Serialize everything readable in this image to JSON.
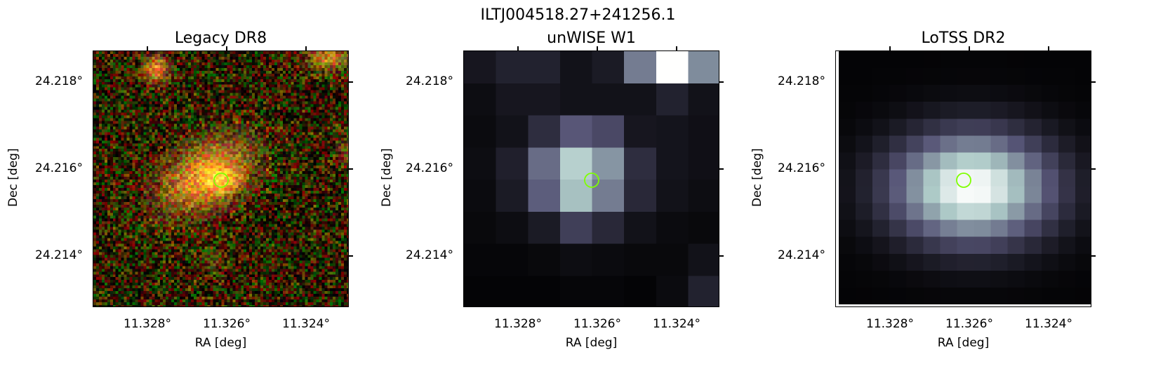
{
  "figure": {
    "title": "ILTJ004518.27+241256.1",
    "marker_color": "#7fff00"
  },
  "panels": [
    {
      "title": "Legacy DR8",
      "xlabel": "RA [deg]",
      "ylabel": "Dec [deg]",
      "xticks": [
        "11.328°",
        "11.326°",
        "11.324°"
      ],
      "yticks": [
        "24.218°",
        "24.216°",
        "24.214°"
      ],
      "image": "optical-rgb-noise",
      "source_marker": "green-circle"
    },
    {
      "title": "unWISE W1",
      "xlabel": "RA [deg]",
      "ylabel": "Dec [deg]",
      "xticks": [
        "11.328°",
        "11.326°",
        "11.324°"
      ],
      "yticks": [
        "24.218°",
        "24.216°",
        "24.214°"
      ],
      "image": "infrared-coarse-pixels",
      "source_marker": "green-circle"
    },
    {
      "title": "LoTSS DR2",
      "xlabel": "RA [deg]",
      "ylabel": "Dec [deg]",
      "xticks": [
        "11.328°",
        "11.326°",
        "11.324°"
      ],
      "yticks": [
        "24.218°",
        "24.216°",
        "24.214°"
      ],
      "image": "radio-smooth-blob",
      "source_marker": "green-circle"
    }
  ]
}
